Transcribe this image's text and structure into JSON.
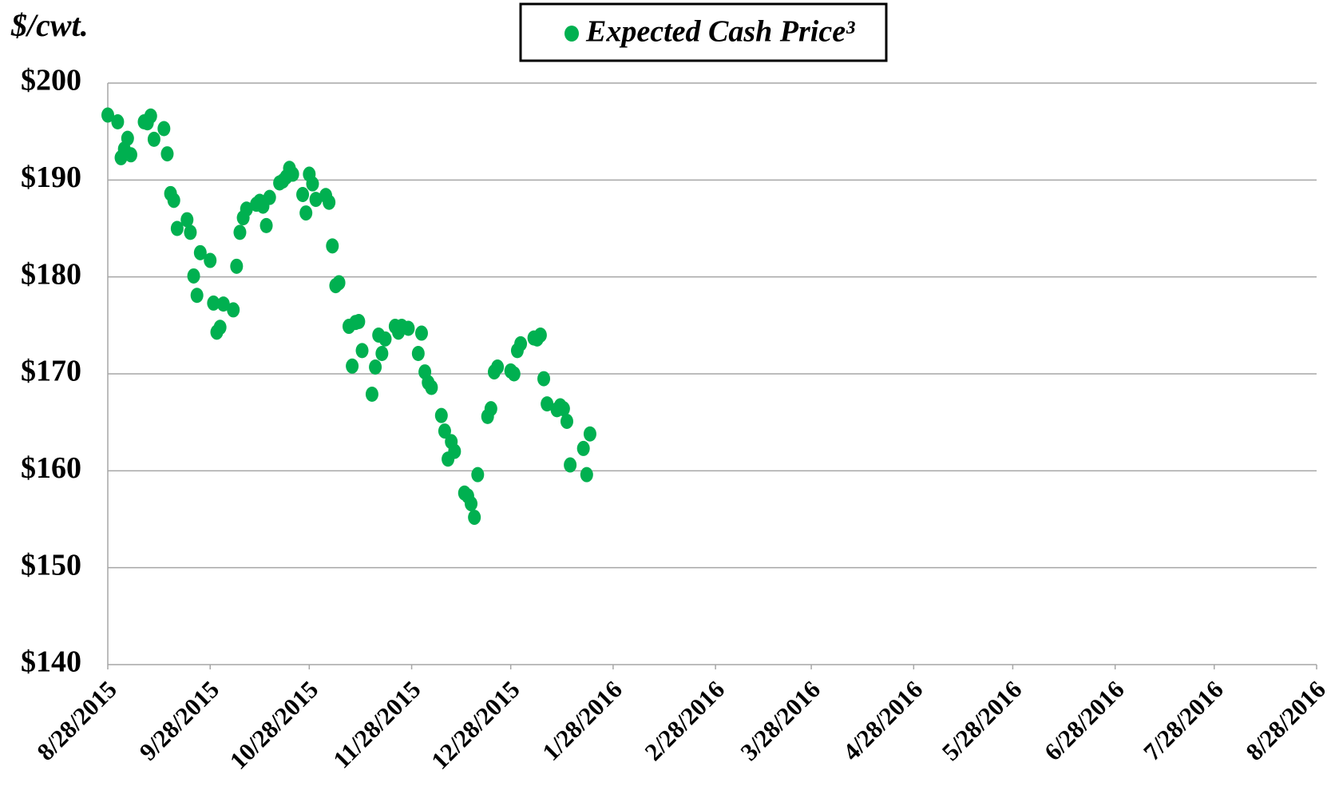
{
  "chart_data": {
    "type": "scatter",
    "y_label": "$/cwt.",
    "legend": "top",
    "grid": true,
    "ylim": [
      140,
      200
    ],
    "yticks": [
      {
        "value": 140,
        "label": "$140"
      },
      {
        "value": 150,
        "label": "$150"
      },
      {
        "value": 160,
        "label": "$160"
      },
      {
        "value": 170,
        "label": "$170"
      },
      {
        "value": 180,
        "label": "$180"
      },
      {
        "value": 190,
        "label": "$190"
      },
      {
        "value": 200,
        "label": "$200"
      }
    ],
    "xlim": [
      "8/28/2015",
      "8/28/2016"
    ],
    "xticks": [
      "8/28/2015",
      "9/28/2015",
      "10/28/2015",
      "11/28/2015",
      "12/28/2015",
      "1/28/2016",
      "2/28/2016",
      "3/28/2016",
      "4/28/2016",
      "5/28/2016",
      "6/28/2016",
      "7/28/2016",
      "8/28/2016"
    ],
    "x": [
      "8/28/2015",
      "8/31/2015",
      "9/1/2015",
      "9/2/2015",
      "9/3/2015",
      "9/4/2015",
      "9/8/2015",
      "9/9/2015",
      "9/10/2015",
      "9/11/2015",
      "9/14/2015",
      "9/15/2015",
      "9/16/2015",
      "9/17/2015",
      "9/18/2015",
      "9/21/2015",
      "9/22/2015",
      "9/23/2015",
      "9/24/2015",
      "9/25/2015",
      "9/28/2015",
      "9/29/2015",
      "9/30/2015",
      "10/1/2015",
      "10/2/2015",
      "10/5/2015",
      "10/6/2015",
      "10/7/2015",
      "10/8/2015",
      "10/9/2015",
      "10/12/2015",
      "10/13/2015",
      "10/14/2015",
      "10/15/2015",
      "10/16/2015",
      "10/19/2015",
      "10/20/2015",
      "10/21/2015",
      "10/22/2015",
      "10/23/2015",
      "10/26/2015",
      "10/27/2015",
      "10/28/2015",
      "10/29/2015",
      "10/30/2015",
      "11/2/2015",
      "11/3/2015",
      "11/4/2015",
      "11/5/2015",
      "11/6/2015",
      "11/9/2015",
      "11/10/2015",
      "11/11/2015",
      "11/12/2015",
      "11/13/2015",
      "11/16/2015",
      "11/17/2015",
      "11/18/2015",
      "11/19/2015",
      "11/20/2015",
      "11/23/2015",
      "11/24/2015",
      "11/25/2015",
      "11/27/2015",
      "11/30/2015",
      "12/1/2015",
      "12/2/2015",
      "12/3/2015",
      "12/4/2015",
      "12/7/2015",
      "12/8/2015",
      "12/9/2015",
      "12/10/2015",
      "12/11/2015",
      "12/14/2015",
      "12/15/2015",
      "12/16/2015",
      "12/17/2015",
      "12/18/2015",
      "12/21/2015",
      "12/22/2015",
      "12/23/2015",
      "12/24/2015",
      "12/28/2015",
      "12/29/2015",
      "12/30/2015",
      "12/31/2015",
      "1/4/2016",
      "1/5/2016",
      "1/6/2016",
      "1/7/2016",
      "1/8/2016",
      "1/11/2016",
      "1/12/2016",
      "1/13/2016",
      "1/14/2016",
      "1/15/2016",
      "1/19/2016",
      "1/20/2016",
      "1/21/2016"
    ],
    "series": [
      {
        "name": "Expected Cash Price³",
        "color": "#00b050",
        "values": [
          196.7,
          196.0,
          192.3,
          193.2,
          194.3,
          192.6,
          196.0,
          195.9,
          196.6,
          194.2,
          195.3,
          192.7,
          188.6,
          187.9,
          185.0,
          185.9,
          184.6,
          180.1,
          178.1,
          182.5,
          181.7,
          177.3,
          174.3,
          174.8,
          177.2,
          176.6,
          181.1,
          184.6,
          186.1,
          187.0,
          187.5,
          187.8,
          187.3,
          185.3,
          188.2,
          189.7,
          189.9,
          190.3,
          191.2,
          190.6,
          188.5,
          186.6,
          190.6,
          189.6,
          188.0,
          188.4,
          187.7,
          183.2,
          179.1,
          179.4,
          174.9,
          170.8,
          175.3,
          175.4,
          172.4,
          167.9,
          170.7,
          174.0,
          172.1,
          173.6,
          174.9,
          174.3,
          174.9,
          174.7,
          172.1,
          174.2,
          170.2,
          169.1,
          168.6,
          165.7,
          164.1,
          161.2,
          163.0,
          162.0,
          157.7,
          157.4,
          156.6,
          155.2,
          159.6,
          165.6,
          166.4,
          170.2,
          170.7,
          170.3,
          170.0,
          172.4,
          173.1,
          173.7,
          173.6,
          174.0,
          169.5,
          166.9,
          166.3,
          166.7,
          166.4,
          165.1,
          160.6,
          162.3,
          159.6,
          163.8
        ]
      }
    ]
  }
}
